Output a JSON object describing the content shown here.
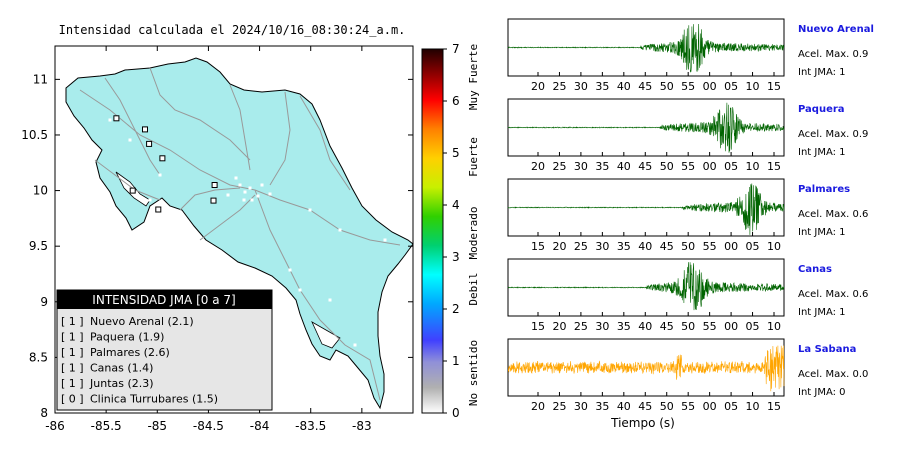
{
  "map": {
    "title": "Intensidad calculada el 2024/10/16_08:30:24_a.m.",
    "x_ticks": [
      "-86",
      "-85.5",
      "-85",
      "-84.5",
      "-84",
      "-83.5",
      "-83"
    ],
    "y_ticks": [
      "11",
      "10.5",
      "10",
      "9.5",
      "9",
      "8.5",
      "8"
    ],
    "stations": [
      {
        "lon": -85.4,
        "lat": 10.65
      },
      {
        "lon": -85.12,
        "lat": 10.55
      },
      {
        "lon": -85.08,
        "lat": 10.42
      },
      {
        "lon": -84.95,
        "lat": 10.29
      },
      {
        "lon": -85.24,
        "lat": 10.0
      },
      {
        "lon": -84.99,
        "lat": 9.83
      },
      {
        "lon": -84.44,
        "lat": 10.05
      },
      {
        "lon": -84.45,
        "lat": 9.91
      }
    ]
  },
  "legend_box": {
    "title": "INTENSIDAD JMA [0 a 7]",
    "entries": [
      {
        "level": "[ 1 ]",
        "name": "Nuevo Arenal (2.1)"
      },
      {
        "level": "[ 1 ]",
        "name": "Paquera (1.9)"
      },
      {
        "level": "[ 1 ]",
        "name": "Palmares (2.6)"
      },
      {
        "level": "[ 1 ]",
        "name": "Canas (1.4)"
      },
      {
        "level": "[ 1 ]",
        "name": "Juntas (2.3)"
      },
      {
        "level": "[ 0 ]",
        "name": "Clinica Turrubares (1.5)"
      }
    ]
  },
  "colorbar": {
    "ticks": [
      "0",
      "1",
      "2",
      "3",
      "4",
      "5",
      "6",
      "7"
    ],
    "labels": [
      "No sentido",
      "Debil",
      "Moderado",
      "Fuerte",
      "Muy Fuerte"
    ]
  },
  "chart_data": {
    "type": "line",
    "xlabel": "Tiempo (s)",
    "series": [
      {
        "name": "Nuevo Arenal",
        "accel": "Acel. Max. 0.9",
        "jma": "Int JMA: 1",
        "color": "#006400",
        "ticks": [
          "20",
          "25",
          "30",
          "35",
          "40",
          "45",
          "50",
          "55",
          "00",
          "05",
          "10",
          "15"
        ],
        "onset": 0.48,
        "peak": 0.67
      },
      {
        "name": "Paquera",
        "accel": "Acel. Max. 0.9",
        "jma": "Int JMA: 1",
        "color": "#006400",
        "ticks": [
          "20",
          "25",
          "30",
          "35",
          "40",
          "45",
          "50",
          "55",
          "00",
          "05",
          "10",
          "15"
        ],
        "onset": 0.55,
        "peak": 0.79
      },
      {
        "name": "Palmares",
        "accel": "Acel. Max. 0.6",
        "jma": "Int JMA: 1",
        "color": "#006400",
        "ticks": [
          "15",
          "20",
          "25",
          "30",
          "35",
          "40",
          "45",
          "50",
          "55",
          "00",
          "05",
          "10"
        ],
        "onset": 0.63,
        "peak": 0.88
      },
      {
        "name": "Canas",
        "accel": "Acel. Max. 0.6",
        "jma": "Int JMA: 1",
        "color": "#006400",
        "ticks": [
          "15",
          "20",
          "25",
          "30",
          "35",
          "40",
          "45",
          "50",
          "55",
          "00",
          "05",
          "10"
        ],
        "onset": 0.5,
        "peak": 0.67
      },
      {
        "name": "La Sabana",
        "accel": "Acel. Max. 0.0",
        "jma": "Int JMA: 0",
        "color": "#ffa500",
        "ticks": [
          "20",
          "25",
          "30",
          "35",
          "40",
          "45",
          "50",
          "55",
          "00",
          "05",
          "10",
          "15"
        ],
        "onset": 0.0,
        "peak": 0.97
      }
    ]
  }
}
